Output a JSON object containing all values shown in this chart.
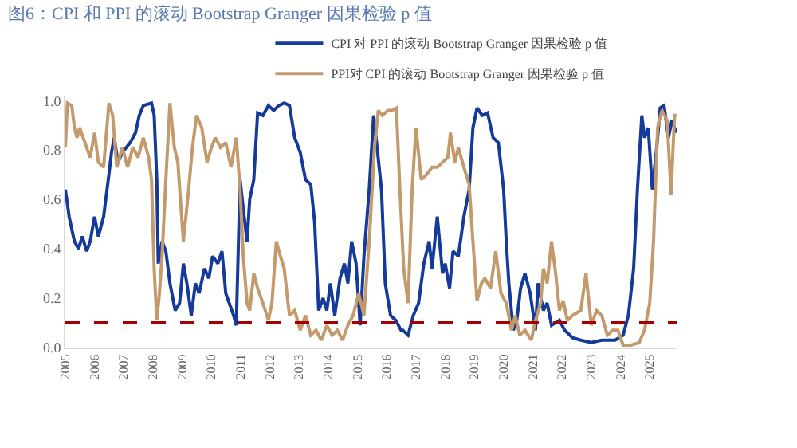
{
  "chart_data": {
    "type": "line",
    "title": "图6：CPI 和 PPI 的滚动 Bootstrap Granger 因果检验 p 值",
    "xlim": [
      2005,
      2025.95
    ],
    "xticks": [
      2005,
      2006,
      2007,
      2008,
      2009,
      2010,
      2011,
      2012,
      2013,
      2014,
      2015,
      2016,
      2017,
      2018,
      2019,
      2020,
      2021,
      2022,
      2023,
      2024,
      2025
    ],
    "ylim": [
      0,
      1.02
    ],
    "yticks": [
      {
        "value": 0,
        "label": "0.0"
      },
      {
        "value": 0.2,
        "label": "0.2"
      },
      {
        "value": 0.4,
        "label": "0.4"
      },
      {
        "value": 0.6,
        "label": "0.6"
      },
      {
        "value": 0.8,
        "label": "0.8"
      },
      {
        "value": 1,
        "label": "1.0"
      }
    ],
    "grid": false,
    "legend": "top",
    "marker": "none",
    "line_style": "solid",
    "ref_lines": [
      {
        "axis": "y",
        "value": 0.1,
        "color": "#a50000",
        "line_style": "dashed"
      }
    ],
    "series": [
      {
        "name": "CPI 对 PPI 的滚动 Bootstrap Granger 因果检验 p 值",
        "color": "#143a9a",
        "x": [
          2005.0,
          2005.13,
          2005.31,
          2005.45,
          2005.58,
          2005.73,
          2005.85,
          2006.0,
          2006.13,
          2006.31,
          2006.49,
          2006.58,
          2006.67,
          2006.8,
          2006.95,
          2007.22,
          2007.4,
          2007.53,
          2007.67,
          2007.95,
          2008.04,
          2008.13,
          2008.18,
          2008.31,
          2008.44,
          2008.58,
          2008.76,
          2008.91,
          2009.04,
          2009.16,
          2009.31,
          2009.45,
          2009.58,
          2009.76,
          2009.91,
          2010.04,
          2010.22,
          2010.36,
          2010.49,
          2010.76,
          2010.85,
          2010.98,
          2011.09,
          2011.22,
          2011.31,
          2011.45,
          2011.58,
          2011.76,
          2011.95,
          2012.13,
          2012.31,
          2012.49,
          2012.67,
          2012.85,
          2013.04,
          2013.22,
          2013.4,
          2013.53,
          2013.67,
          2013.82,
          2013.95,
          2014.07,
          2014.22,
          2014.4,
          2014.55,
          2014.67,
          2014.8,
          2014.95,
          2015.09,
          2015.22,
          2015.4,
          2015.55,
          2015.67,
          2015.82,
          2015.95,
          2016.13,
          2016.31,
          2016.49,
          2016.55,
          2016.73,
          2016.91,
          2017.09,
          2017.27,
          2017.45,
          2017.55,
          2017.73,
          2017.91,
          2018.0,
          2018.15,
          2018.27,
          2018.45,
          2018.64,
          2018.82,
          2018.95,
          2019.09,
          2019.27,
          2019.45,
          2019.64,
          2019.82,
          2020.0,
          2020.09,
          2020.18,
          2020.33,
          2020.45,
          2020.58,
          2020.73,
          2020.91,
          2021.09,
          2021.18,
          2021.36,
          2021.49,
          2021.64,
          2021.91,
          2022.09,
          2022.36,
          2022.64,
          2023.0,
          2023.36,
          2023.82,
          2024.09,
          2024.27,
          2024.45,
          2024.58,
          2024.73,
          2024.82,
          2024.95,
          2025.09,
          2025.24,
          2025.36,
          2025.49,
          2025.64,
          2025.76,
          2025.91
        ],
        "values": [
          0.64,
          0.53,
          0.43,
          0.4,
          0.45,
          0.39,
          0.43,
          0.53,
          0.45,
          0.53,
          0.7,
          0.79,
          0.85,
          0.75,
          0.79,
          0.83,
          0.87,
          0.94,
          0.98,
          0.99,
          0.94,
          0.68,
          0.34,
          0.43,
          0.39,
          0.26,
          0.15,
          0.18,
          0.34,
          0.26,
          0.13,
          0.26,
          0.22,
          0.32,
          0.28,
          0.37,
          0.34,
          0.39,
          0.22,
          0.13,
          0.09,
          0.68,
          0.56,
          0.43,
          0.6,
          0.68,
          0.95,
          0.94,
          0.98,
          0.96,
          0.98,
          0.99,
          0.98,
          0.85,
          0.79,
          0.68,
          0.66,
          0.51,
          0.15,
          0.2,
          0.15,
          0.26,
          0.13,
          0.28,
          0.34,
          0.26,
          0.43,
          0.34,
          0.09,
          0.37,
          0.64,
          0.94,
          0.81,
          0.64,
          0.26,
          0.13,
          0.11,
          0.07,
          0.07,
          0.05,
          0.13,
          0.18,
          0.34,
          0.43,
          0.32,
          0.53,
          0.3,
          0.34,
          0.24,
          0.39,
          0.37,
          0.53,
          0.64,
          0.89,
          0.97,
          0.94,
          0.95,
          0.85,
          0.83,
          0.64,
          0.43,
          0.26,
          0.07,
          0.11,
          0.24,
          0.3,
          0.22,
          0.07,
          0.26,
          0.15,
          0.18,
          0.09,
          0.11,
          0.07,
          0.04,
          0.03,
          0.02,
          0.03,
          0.03,
          0.05,
          0.13,
          0.32,
          0.64,
          0.94,
          0.85,
          0.89,
          0.64,
          0.81,
          0.97,
          0.98,
          0.85,
          0.92,
          0.87
        ]
      },
      {
        "name": "PPI对 CPI 的滚动 Bootstrap Granger 因果检验 p 值",
        "color": "#c49a6c",
        "x": [
          2005.0,
          2005.07,
          2005.22,
          2005.31,
          2005.4,
          2005.49,
          2005.67,
          2005.85,
          2006.0,
          2006.13,
          2006.31,
          2006.49,
          2006.62,
          2006.76,
          2006.95,
          2007.13,
          2007.31,
          2007.49,
          2007.67,
          2007.85,
          2007.95,
          2008.04,
          2008.13,
          2008.22,
          2008.31,
          2008.44,
          2008.58,
          2008.73,
          2008.85,
          2009.04,
          2009.22,
          2009.35,
          2009.49,
          2009.67,
          2009.85,
          2010.0,
          2010.13,
          2010.31,
          2010.49,
          2010.67,
          2010.85,
          2010.98,
          2011.09,
          2011.22,
          2011.31,
          2011.45,
          2011.58,
          2011.76,
          2011.95,
          2012.07,
          2012.22,
          2012.36,
          2012.49,
          2012.67,
          2012.85,
          2013.04,
          2013.22,
          2013.4,
          2013.58,
          2013.76,
          2013.95,
          2014.13,
          2014.31,
          2014.49,
          2014.67,
          2014.85,
          2015.04,
          2015.22,
          2015.4,
          2015.58,
          2015.71,
          2015.85,
          2016.04,
          2016.18,
          2016.33,
          2016.45,
          2016.58,
          2016.73,
          2016.87,
          2017.0,
          2017.18,
          2017.36,
          2017.55,
          2017.73,
          2017.91,
          2018.09,
          2018.18,
          2018.33,
          2018.45,
          2018.64,
          2018.82,
          2018.95,
          2019.09,
          2019.24,
          2019.36,
          2019.55,
          2019.73,
          2019.91,
          2020.09,
          2020.27,
          2020.4,
          2020.55,
          2020.73,
          2020.95,
          2021.09,
          2021.27,
          2021.36,
          2021.49,
          2021.64,
          2021.78,
          2021.91,
          2022.04,
          2022.18,
          2022.36,
          2022.64,
          2022.82,
          2023.0,
          2023.18,
          2023.36,
          2023.55,
          2023.73,
          2023.91,
          2024.09,
          2024.36,
          2024.64,
          2024.82,
          2025.0,
          2025.13,
          2025.27,
          2025.42,
          2025.6,
          2025.73,
          2025.85,
          2025.92
        ],
        "values": [
          0.81,
          0.99,
          0.98,
          0.89,
          0.85,
          0.89,
          0.83,
          0.77,
          0.87,
          0.75,
          0.73,
          0.99,
          0.94,
          0.73,
          0.81,
          0.73,
          0.81,
          0.77,
          0.85,
          0.77,
          0.68,
          0.32,
          0.11,
          0.22,
          0.37,
          0.68,
          0.99,
          0.81,
          0.75,
          0.43,
          0.64,
          0.81,
          0.94,
          0.89,
          0.75,
          0.81,
          0.85,
          0.81,
          0.83,
          0.73,
          0.85,
          0.64,
          0.37,
          0.18,
          0.15,
          0.3,
          0.24,
          0.18,
          0.11,
          0.18,
          0.43,
          0.37,
          0.32,
          0.13,
          0.15,
          0.07,
          0.13,
          0.05,
          0.07,
          0.03,
          0.09,
          0.05,
          0.07,
          0.03,
          0.09,
          0.13,
          0.22,
          0.13,
          0.43,
          0.81,
          0.96,
          0.94,
          0.96,
          0.96,
          0.97,
          0.64,
          0.32,
          0.18,
          0.64,
          0.89,
          0.68,
          0.7,
          0.73,
          0.73,
          0.75,
          0.77,
          0.87,
          0.75,
          0.81,
          0.73,
          0.66,
          0.43,
          0.19,
          0.26,
          0.28,
          0.24,
          0.39,
          0.22,
          0.18,
          0.07,
          0.13,
          0.05,
          0.07,
          0.03,
          0.11,
          0.18,
          0.32,
          0.26,
          0.43,
          0.3,
          0.15,
          0.19,
          0.11,
          0.13,
          0.15,
          0.3,
          0.09,
          0.15,
          0.13,
          0.05,
          0.07,
          0.07,
          0.01,
          0.01,
          0.02,
          0.07,
          0.18,
          0.43,
          0.89,
          0.96,
          0.92,
          0.62,
          0.94,
          0.94
        ]
      }
    ]
  }
}
